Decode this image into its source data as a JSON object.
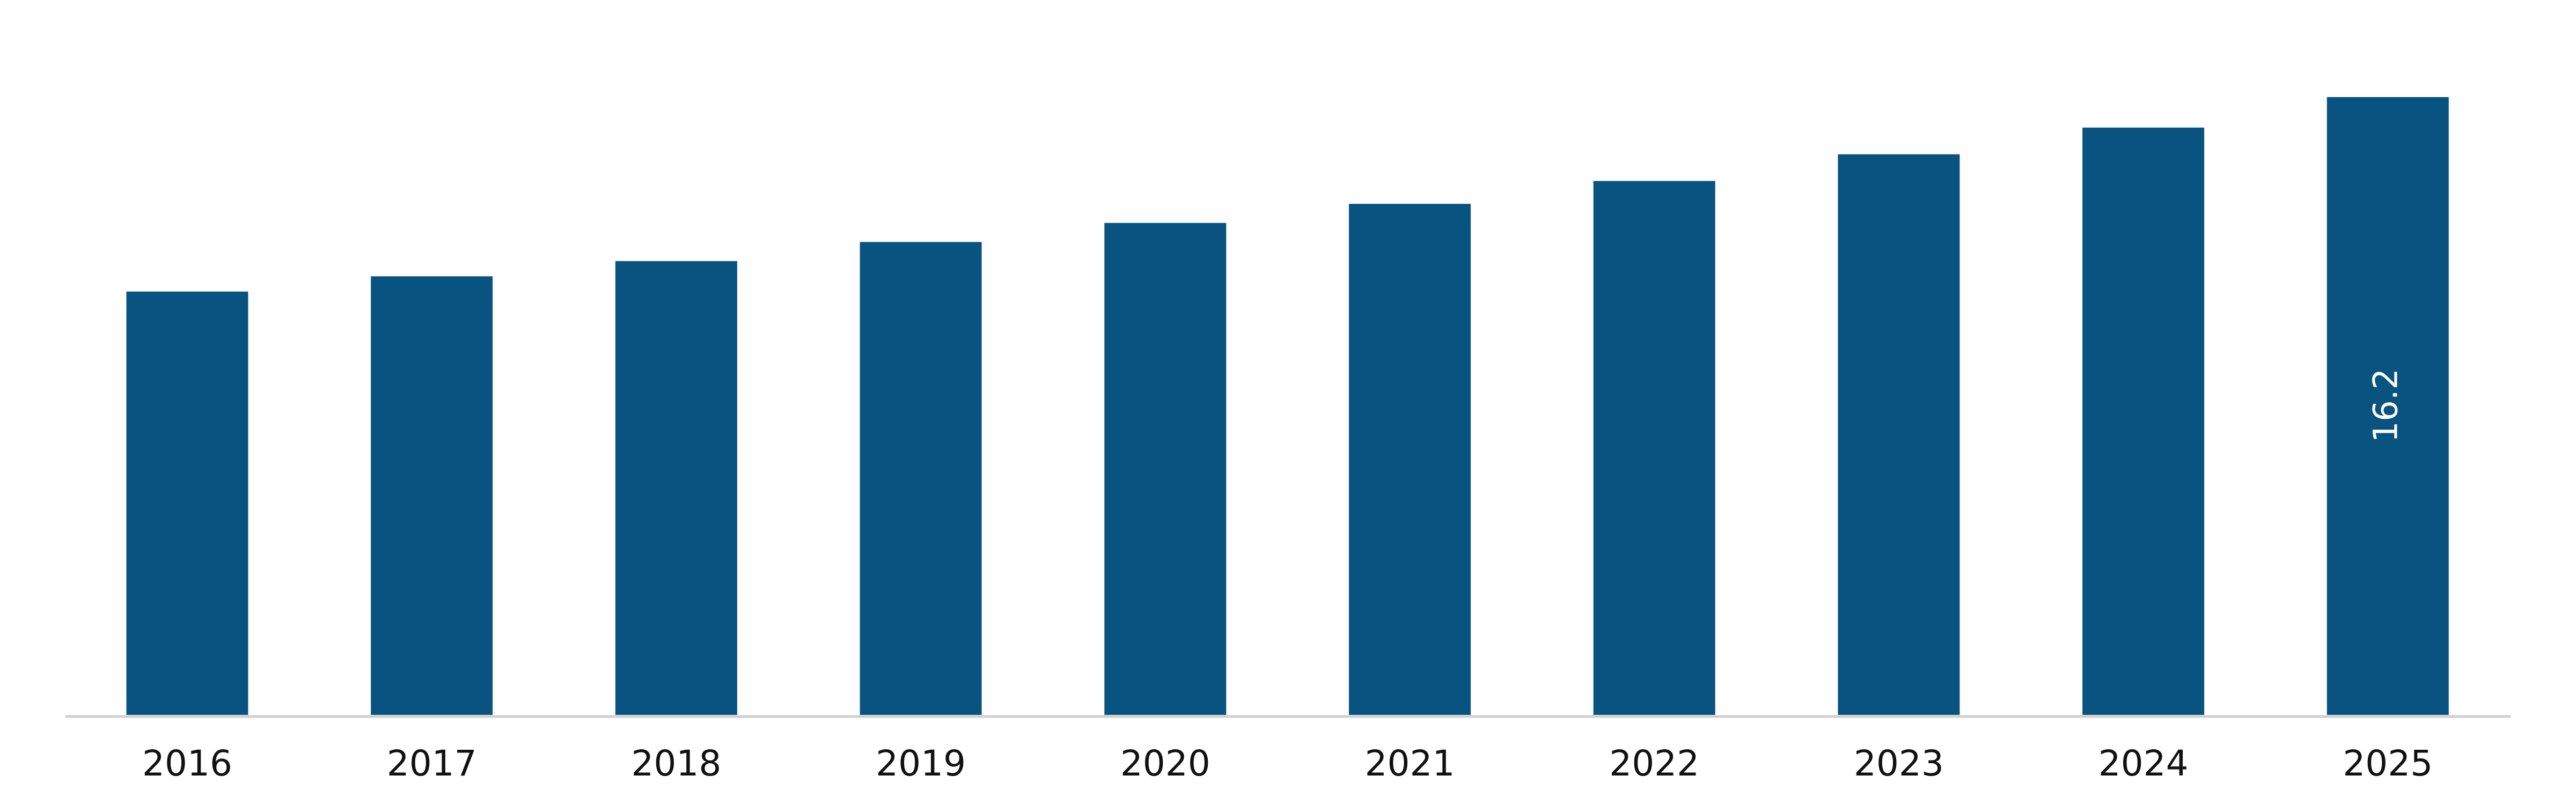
{
  "chart_data": {
    "type": "bar",
    "categories": [
      "2016",
      "2017",
      "2018",
      "2019",
      "2020",
      "2021",
      "2022",
      "2023",
      "2024",
      "2025"
    ],
    "values": [
      11.1,
      11.5,
      11.9,
      12.4,
      12.9,
      13.4,
      14.0,
      14.7,
      15.4,
      16.2
    ],
    "value_labels": [
      null,
      null,
      null,
      null,
      null,
      null,
      null,
      null,
      null,
      "16.2"
    ],
    "color": "#08537f"
  }
}
